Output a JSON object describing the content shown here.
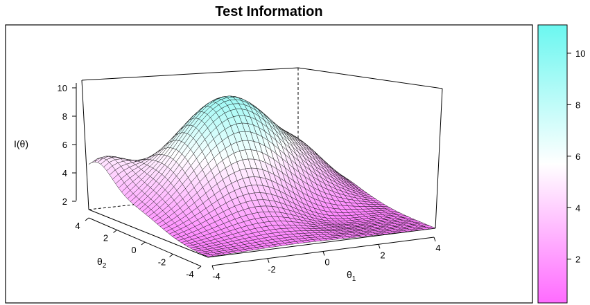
{
  "chart_data": {
    "type": "surface",
    "title": "Test Information",
    "zlabel": "I(θ)",
    "xlabel": "θ1",
    "ylabel": "θ2",
    "x_ticks": [
      "-4",
      "-2",
      "0",
      "2",
      "4"
    ],
    "y_ticks": [
      "-4",
      "-2",
      "0",
      "2",
      "4"
    ],
    "z_ticks": [
      "2",
      "4",
      "6",
      "8",
      "10"
    ],
    "xlim": [
      -4,
      4
    ],
    "ylim": [
      -4,
      4
    ],
    "zlim": [
      1,
      10.5
    ],
    "colorbar": {
      "ticks": [
        "2",
        "4",
        "6",
        "8",
        "10"
      ],
      "range": [
        0.3,
        11.1
      ],
      "low_color": "#ff6bff",
      "mid_color": "#ffffff",
      "high_color": "#6bf7f0"
    },
    "approx_values": {
      "corner_x-4_y4": 5.2,
      "corner_x-4_y-4": 1.0,
      "corner_x4_y-4": 2.0,
      "corner_x4_y4": 1.5,
      "peak_near_x0_y0": 10.0
    }
  }
}
